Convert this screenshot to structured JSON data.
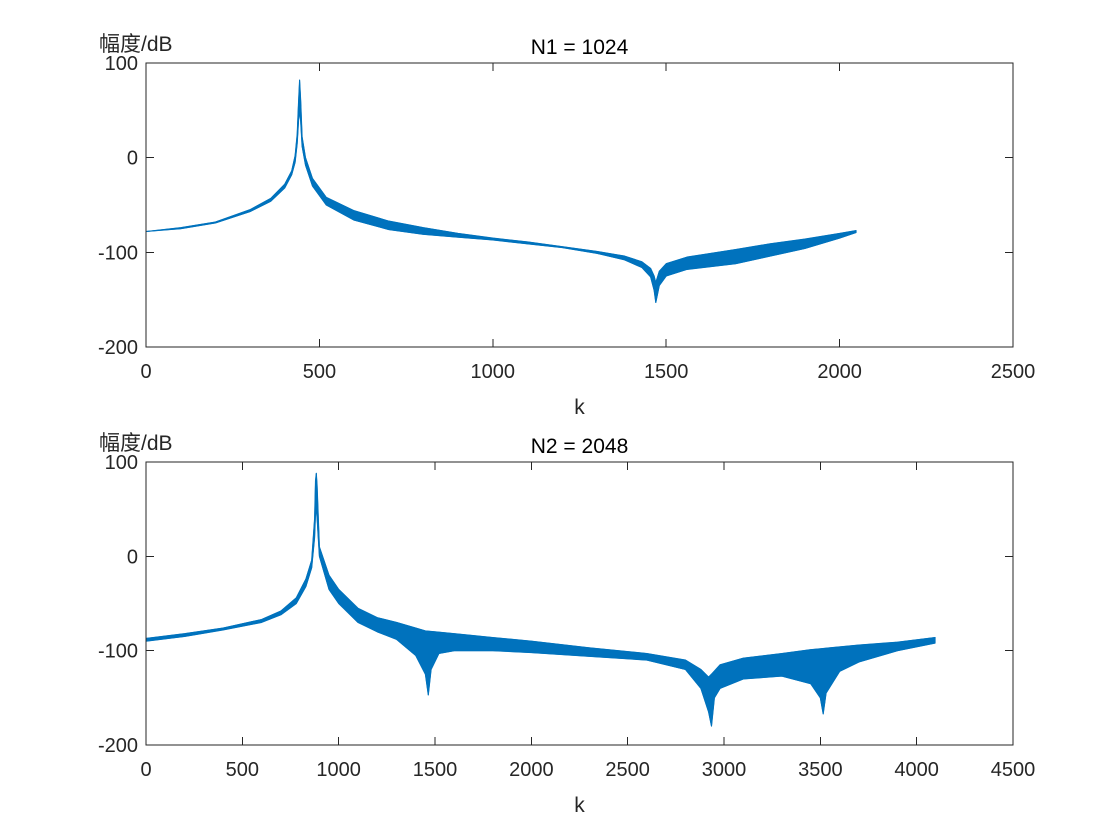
{
  "chart_data": [
    {
      "type": "line",
      "title": "N1 = 1024",
      "xlabel": "k",
      "ylabel": "幅度/dB",
      "xlim": [
        0,
        2500
      ],
      "ylim": [
        -200,
        100
      ],
      "xticks": [
        0,
        500,
        1000,
        1500,
        2000,
        2500
      ],
      "yticks": [
        -200,
        -100,
        0,
        100
      ],
      "grid": false,
      "legend": "none",
      "color": "#0072BD",
      "series": [
        {
          "upper": [
            [
              0,
              -78
            ],
            [
              100,
              -74
            ],
            [
              200,
              -68
            ],
            [
              300,
              -55
            ],
            [
              360,
              -43
            ],
            [
              400,
              -28
            ],
            [
              420,
              -14
            ],
            [
              430,
              2
            ],
            [
              436,
              25
            ],
            [
              440,
              60
            ],
            [
              443,
              82
            ],
            [
              446,
              60
            ],
            [
              450,
              22
            ],
            [
              460,
              0
            ],
            [
              480,
              -22
            ],
            [
              520,
              -42
            ],
            [
              600,
              -56
            ],
            [
              700,
              -67
            ],
            [
              800,
              -74
            ],
            [
              900,
              -80
            ],
            [
              1000,
              -85
            ],
            [
              1100,
              -89
            ],
            [
              1200,
              -94
            ],
            [
              1300,
              -99
            ],
            [
              1380,
              -104
            ],
            [
              1430,
              -110
            ],
            [
              1455,
              -117
            ],
            [
              1465,
              -125
            ],
            [
              1470,
              -132
            ],
            [
              1480,
              -120
            ],
            [
              1500,
              -112
            ],
            [
              1560,
              -105
            ],
            [
              1700,
              -97
            ],
            [
              1800,
              -91
            ],
            [
              1900,
              -86
            ],
            [
              2000,
              -80
            ],
            [
              2048,
              -77
            ]
          ],
          "lower": [
            [
              0,
              -78
            ],
            [
              100,
              -75
            ],
            [
              200,
              -69
            ],
            [
              300,
              -57
            ],
            [
              360,
              -46
            ],
            [
              400,
              -32
            ],
            [
              420,
              -18
            ],
            [
              430,
              -5
            ],
            [
              436,
              15
            ],
            [
              440,
              40
            ],
            [
              443,
              50
            ],
            [
              446,
              38
            ],
            [
              450,
              12
            ],
            [
              460,
              -8
            ],
            [
              480,
              -30
            ],
            [
              520,
              -50
            ],
            [
              600,
              -66
            ],
            [
              700,
              -76
            ],
            [
              800,
              -81
            ],
            [
              900,
              -84
            ],
            [
              1000,
              -87
            ],
            [
              1100,
              -91
            ],
            [
              1200,
              -95
            ],
            [
              1300,
              -101
            ],
            [
              1380,
              -108
            ],
            [
              1430,
              -116
            ],
            [
              1455,
              -126
            ],
            [
              1465,
              -140
            ],
            [
              1470,
              -153
            ],
            [
              1480,
              -135
            ],
            [
              1500,
              -125
            ],
            [
              1560,
              -118
            ],
            [
              1700,
              -112
            ],
            [
              1800,
              -104
            ],
            [
              1900,
              -96
            ],
            [
              2000,
              -85
            ],
            [
              2048,
              -79
            ]
          ]
        }
      ]
    },
    {
      "type": "line",
      "title": "N2 = 2048",
      "xlabel": "k",
      "ylabel": "幅度/dB",
      "xlim": [
        0,
        4500
      ],
      "ylim": [
        -200,
        100
      ],
      "xticks": [
        0,
        500,
        1000,
        1500,
        2000,
        2500,
        3000,
        3500,
        4000,
        4500
      ],
      "yticks": [
        -200,
        -100,
        0,
        100
      ],
      "grid": false,
      "legend": "none",
      "color": "#0072BD",
      "series": [
        {
          "upper": [
            [
              0,
              -87
            ],
            [
              200,
              -82
            ],
            [
              400,
              -76
            ],
            [
              600,
              -67
            ],
            [
              700,
              -58
            ],
            [
              780,
              -44
            ],
            [
              830,
              -24
            ],
            [
              860,
              -4
            ],
            [
              875,
              40
            ],
            [
              880,
              80
            ],
            [
              884,
              88
            ],
            [
              888,
              75
            ],
            [
              900,
              10
            ],
            [
              950,
              -20
            ],
            [
              1000,
              -35
            ],
            [
              1100,
              -55
            ],
            [
              1200,
              -65
            ],
            [
              1300,
              -70
            ],
            [
              1400,
              -76
            ],
            [
              1450,
              -79
            ],
            [
              1500,
              -80
            ],
            [
              1600,
              -82
            ],
            [
              1800,
              -86
            ],
            [
              2000,
              -90
            ],
            [
              2300,
              -97
            ],
            [
              2600,
              -103
            ],
            [
              2800,
              -110
            ],
            [
              2880,
              -120
            ],
            [
              2920,
              -128
            ],
            [
              2940,
              -124
            ],
            [
              2980,
              -115
            ],
            [
              3100,
              -108
            ],
            [
              3300,
              -103
            ],
            [
              3450,
              -99
            ],
            [
              3500,
              -98
            ],
            [
              3550,
              -97
            ],
            [
              3700,
              -94
            ],
            [
              3900,
              -91
            ],
            [
              4096,
              -86
            ]
          ],
          "lower": [
            [
              0,
              -90
            ],
            [
              200,
              -85
            ],
            [
              400,
              -78
            ],
            [
              600,
              -70
            ],
            [
              700,
              -62
            ],
            [
              780,
              -50
            ],
            [
              830,
              -32
            ],
            [
              860,
              -12
            ],
            [
              875,
              20
            ],
            [
              880,
              45
            ],
            [
              884,
              50
            ],
            [
              888,
              40
            ],
            [
              900,
              0
            ],
            [
              950,
              -35
            ],
            [
              1000,
              -50
            ],
            [
              1100,
              -70
            ],
            [
              1200,
              -80
            ],
            [
              1300,
              -88
            ],
            [
              1400,
              -105
            ],
            [
              1450,
              -125
            ],
            [
              1465,
              -147
            ],
            [
              1480,
              -120
            ],
            [
              1520,
              -103
            ],
            [
              1600,
              -100
            ],
            [
              1800,
              -100
            ],
            [
              2000,
              -102
            ],
            [
              2300,
              -106
            ],
            [
              2600,
              -110
            ],
            [
              2800,
              -120
            ],
            [
              2880,
              -140
            ],
            [
              2920,
              -165
            ],
            [
              2935,
              -180
            ],
            [
              2950,
              -150
            ],
            [
              2980,
              -140
            ],
            [
              3100,
              -130
            ],
            [
              3300,
              -127
            ],
            [
              3450,
              -135
            ],
            [
              3500,
              -150
            ],
            [
              3515,
              -167
            ],
            [
              3530,
              -145
            ],
            [
              3600,
              -122
            ],
            [
              3700,
              -112
            ],
            [
              3900,
              -100
            ],
            [
              4096,
              -92
            ]
          ]
        }
      ]
    }
  ]
}
